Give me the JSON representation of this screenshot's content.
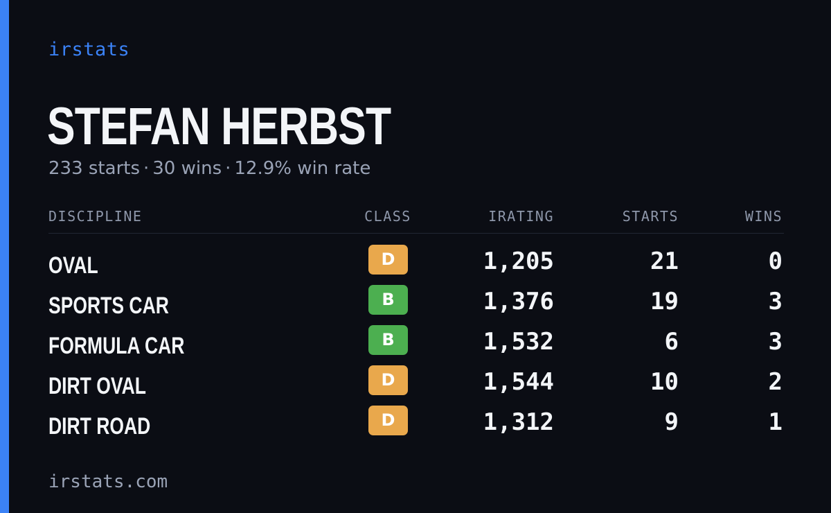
{
  "brand": "irstats",
  "accent_color": "#3b82f6",
  "driver_name": "STEFAN HERBST",
  "summary": {
    "starts": "233 starts",
    "wins": "30 wins",
    "win_rate": "12.9% win rate",
    "separator": "·"
  },
  "table": {
    "headers": {
      "discipline": "DISCIPLINE",
      "class": "CLASS",
      "irating": "IRATING",
      "starts": "STARTS",
      "wins": "WINS"
    },
    "rows": [
      {
        "discipline": "OVAL",
        "class": "D",
        "irating": "1,205",
        "starts": "21",
        "wins": "0"
      },
      {
        "discipline": "SPORTS CAR",
        "class": "B",
        "irating": "1,376",
        "starts": "19",
        "wins": "3"
      },
      {
        "discipline": "FORMULA CAR",
        "class": "B",
        "irating": "1,532",
        "starts": "6",
        "wins": "3"
      },
      {
        "discipline": "DIRT OVAL",
        "class": "D",
        "irating": "1,544",
        "starts": "10",
        "wins": "2"
      },
      {
        "discipline": "DIRT ROAD",
        "class": "D",
        "irating": "1,312",
        "starts": "9",
        "wins": "1"
      }
    ]
  },
  "class_colors": {
    "D": "#e9a84c",
    "B": "#4caf50"
  },
  "footer": "irstats.com"
}
